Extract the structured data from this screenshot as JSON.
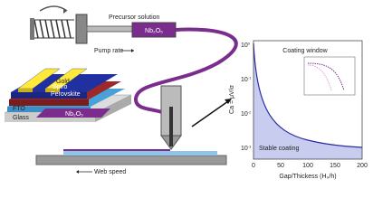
{
  "pump": {
    "label": "Precursor solution",
    "material": "Nb₂O₅",
    "rate_label": "Pump rate"
  },
  "device": {
    "layers": [
      "Gold",
      "Spiro",
      "Perovskite",
      "FTO",
      "Glass"
    ],
    "coating": "Nb₂O₅"
  },
  "stage": {
    "label": "Web speed"
  },
  "plot": {
    "title": "Coating window",
    "region_label": "Stable coating",
    "y_label": "Ca = μV/σ",
    "x_label": "Gap/Thickess (H₀/h)",
    "x_ticks": [
      "0",
      "50",
      "100",
      "150",
      "200"
    ],
    "y_ticks": [
      {
        "base": "10",
        "exp": "0"
      },
      {
        "base": "10",
        "exp": "-1"
      },
      {
        "base": "10",
        "exp": "-2"
      },
      {
        "base": "10",
        "exp": "-3"
      }
    ]
  }
}
